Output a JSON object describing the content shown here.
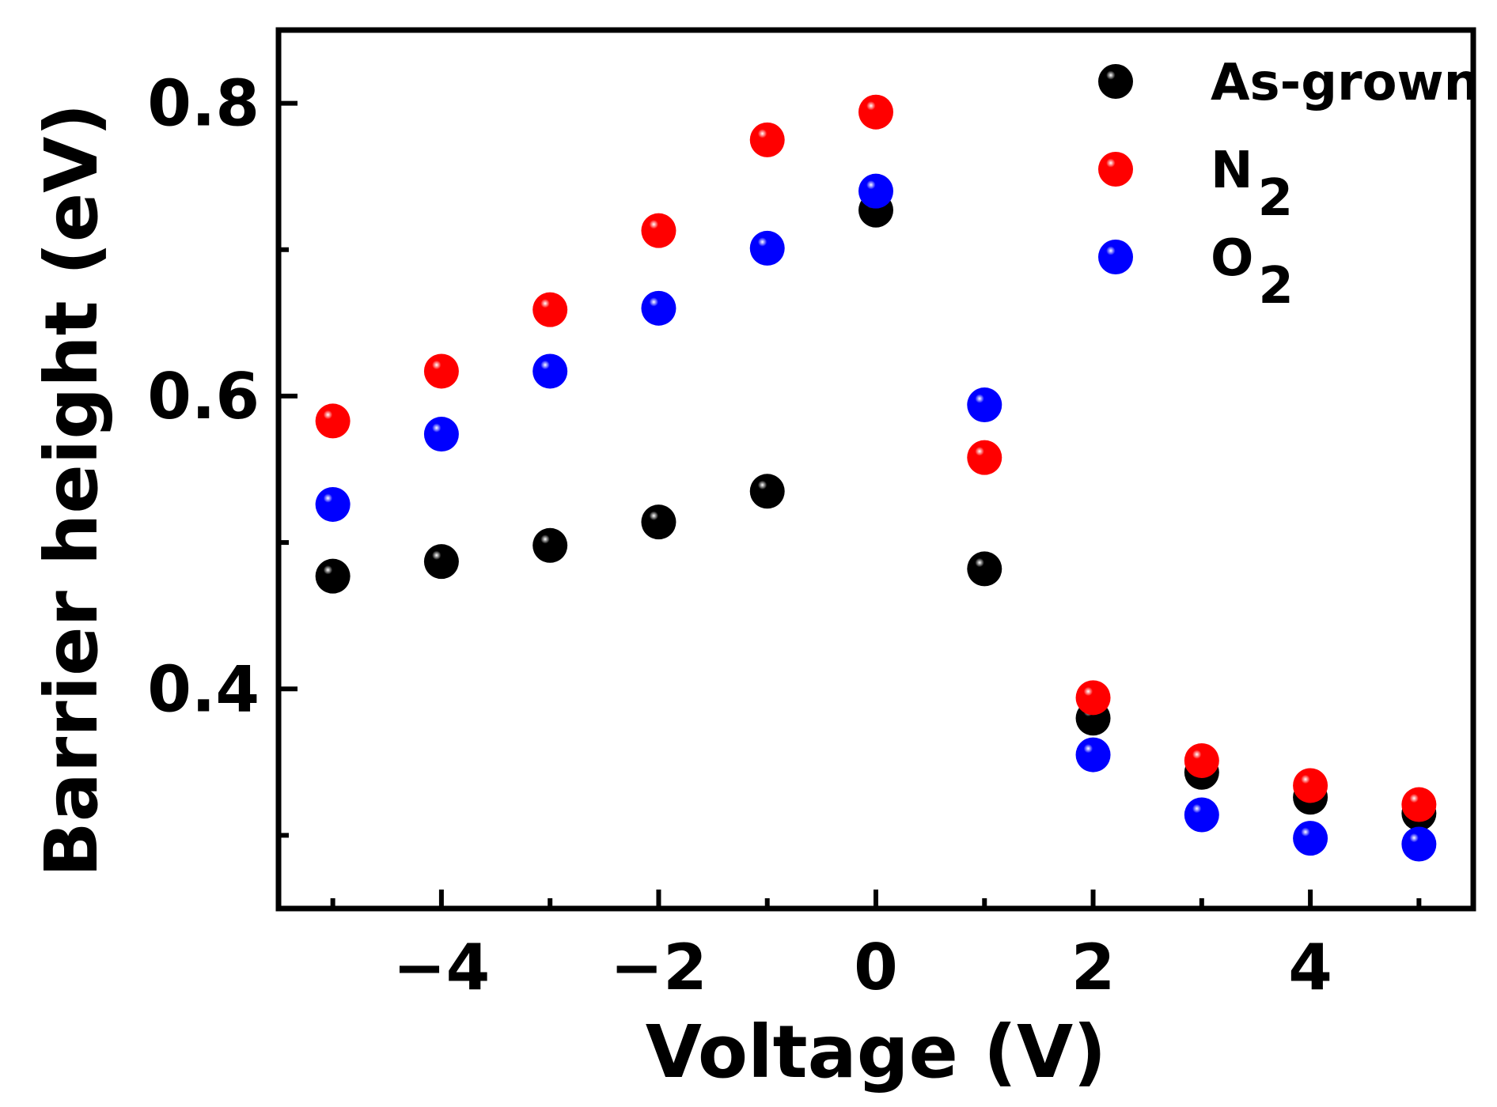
{
  "chart_data": {
    "type": "scatter",
    "title": "",
    "xlabel": "Voltage (V)",
    "ylabel": "Barrier height (eV)",
    "xlim": [
      -5.5,
      5.5
    ],
    "ylim": [
      0.25,
      0.85
    ],
    "x_major_ticks": [
      -4,
      -2,
      0,
      2,
      4
    ],
    "x_minor_ticks": [
      -5,
      -3,
      -1,
      1,
      3,
      5
    ],
    "x_tick_labels": [
      "−4",
      "−2",
      "0",
      "2",
      "4"
    ],
    "y_major_ticks": [
      0.4,
      0.6,
      0.8
    ],
    "y_minor_ticks": [
      0.3,
      0.5,
      0.7
    ],
    "y_tick_labels": [
      "0.4",
      "0.6",
      "0.8"
    ],
    "grid": false,
    "legend_position": "top-right",
    "x": [
      -5,
      -4,
      -3,
      -2,
      -1,
      0,
      1,
      2,
      3,
      4,
      5
    ],
    "series": [
      {
        "name": "As-grown",
        "label_main": "As-grown",
        "label_sub": "",
        "color": "#000000",
        "values": [
          0.477,
          0.487,
          0.498,
          0.514,
          0.535,
          0.727,
          0.482,
          0.38,
          0.343,
          0.326,
          0.315
        ]
      },
      {
        "name": "N2",
        "label_main": "N",
        "label_sub": "2",
        "color": "#ff0000",
        "values": [
          0.583,
          0.617,
          0.659,
          0.713,
          0.775,
          0.794,
          0.558,
          0.394,
          0.351,
          0.334,
          0.321
        ]
      },
      {
        "name": "O2",
        "label_main": "O",
        "label_sub": "2",
        "color": "#0000ff",
        "values": [
          0.526,
          0.574,
          0.617,
          0.66,
          0.701,
          0.74,
          0.594,
          0.355,
          0.314,
          0.298,
          0.294
        ]
      }
    ]
  }
}
